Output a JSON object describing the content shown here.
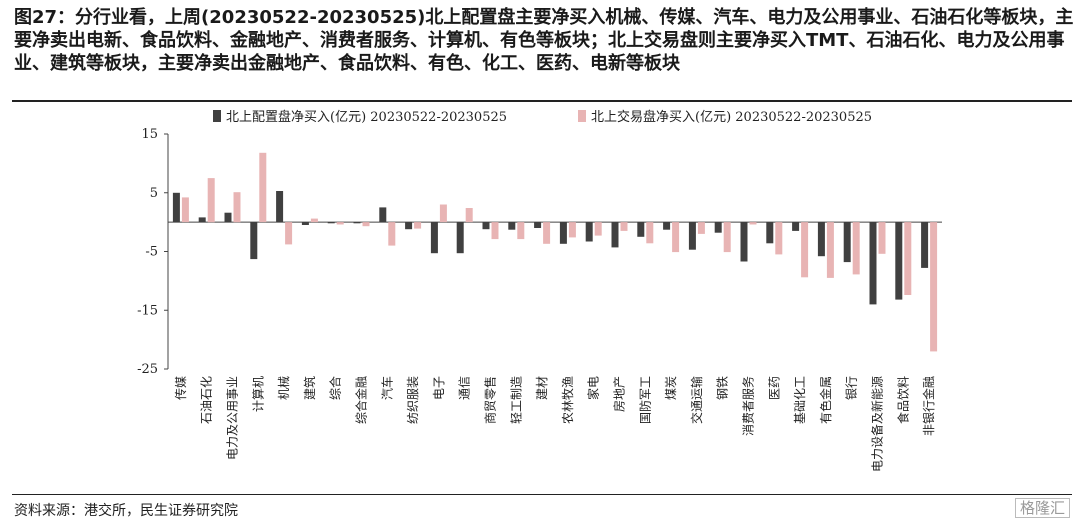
{
  "title": "图27：分行业看，上周(20230522-20230525)北上配置盘主要净买入机械、传媒、汽车、电力及公用事业、石油石化等板块，主要净卖出电新、食品饮料、金融地产、消费者服务、计算机、有色等板块；北上交易盘则主要净买入TMT、石油石化、电力及公用事业、建筑等板块，主要净卖出金融地产、食品饮料、有色、化工、医药、电新等板块",
  "source": "资料来源：港交所，民生证券研究院",
  "watermark": "格隆汇",
  "colors": {
    "series1": "#404040",
    "series2": "#e8b4b4"
  },
  "chart_data": {
    "type": "bar",
    "ylim": [
      -25,
      15
    ],
    "yticks": [
      15,
      5,
      -5,
      -15,
      -25
    ],
    "legend_position": "top",
    "categories": [
      "传媒",
      "石油石化",
      "电力及公用事业",
      "计算机",
      "机械",
      "建筑",
      "综合",
      "综合金融",
      "汽车",
      "纺织服装",
      "电子",
      "通信",
      "商贸零售",
      "轻工制造",
      "建材",
      "农林牧渔",
      "家电",
      "房地产",
      "国防军工",
      "煤炭",
      "交通运输",
      "钢铁",
      "消费者服务",
      "医药",
      "基础化工",
      "有色金属",
      "银行",
      "电力设备及新能源",
      "食品饮料",
      "非银行金融"
    ],
    "series": [
      {
        "name": "北上配置盘净买入(亿元) 20230522-20230525",
        "values": [
          5.0,
          0.8,
          1.6,
          -6.3,
          5.3,
          -0.5,
          -0.2,
          -0.2,
          2.5,
          -1.2,
          -5.3,
          -5.3,
          -1.2,
          -1.3,
          -1.0,
          -3.7,
          -3.3,
          -4.3,
          -2.5,
          -1.3,
          -4.7,
          -1.8,
          -6.7,
          -3.6,
          -1.5,
          -5.8,
          -6.8,
          -14.0,
          -13.2,
          -7.8
        ]
      },
      {
        "name": "北上交易盘净买入(亿元) 20230522-20230525",
        "values": [
          4.2,
          7.5,
          5.1,
          11.8,
          -3.8,
          0.6,
          -0.4,
          -0.7,
          -4.0,
          -1.1,
          3.0,
          2.4,
          -2.9,
          -2.9,
          -3.7,
          -2.6,
          -2.3,
          -1.5,
          -3.6,
          -5.1,
          -2.0,
          -5.1,
          -0.4,
          -5.5,
          -9.4,
          -9.5,
          -8.9,
          -5.4,
          -12.4,
          -22.0
        ]
      }
    ]
  }
}
